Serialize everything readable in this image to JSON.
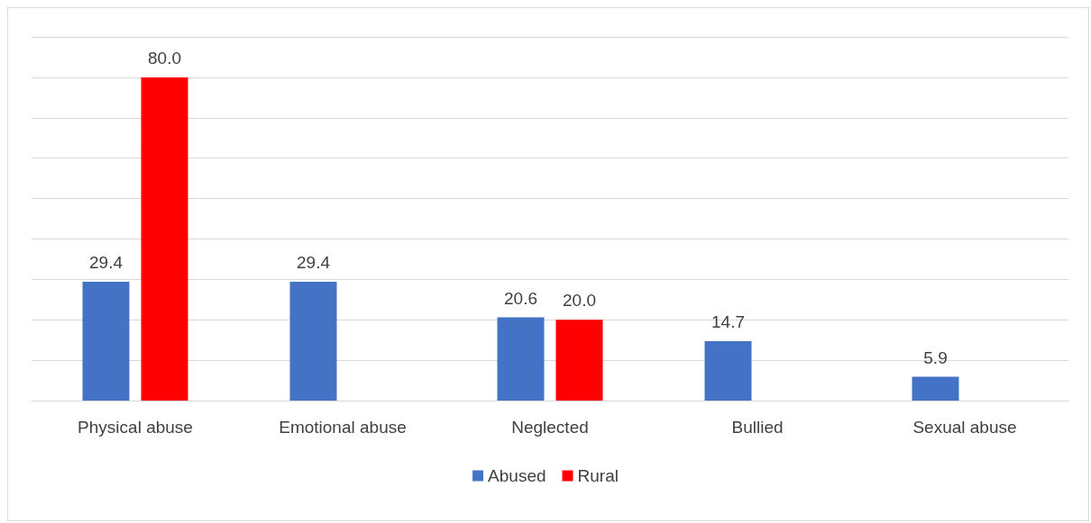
{
  "chart_data": {
    "type": "bar",
    "categories": [
      "Physical abuse",
      "Emotional abuse",
      "Neglected",
      "Bullied",
      "Sexual abuse"
    ],
    "series": [
      {
        "name": "Abused",
        "color": "#4472c4",
        "values": [
          29.4,
          29.4,
          20.6,
          14.7,
          5.9
        ],
        "value_labels": [
          "29.4",
          "29.4",
          "20.6",
          "14.7",
          "5.9"
        ]
      },
      {
        "name": "Rural",
        "color": "#ff0000",
        "values": [
          80,
          null,
          20,
          null,
          null
        ],
        "value_labels": [
          "80.0",
          null,
          "20.0",
          null,
          null
        ]
      }
    ],
    "ylim": [
      0,
      90
    ],
    "yticks": [
      {
        "value": 0,
        "label": null
      },
      {
        "value": 10,
        "label": null
      },
      {
        "value": 20,
        "label": null
      },
      {
        "value": 30,
        "label": null
      },
      {
        "value": 40,
        "label": null
      },
      {
        "value": 50,
        "label": null
      },
      {
        "value": 60,
        "label": null
      },
      {
        "value": 70,
        "label": null
      },
      {
        "value": 80,
        "label": null
      },
      {
        "value": 90,
        "label": null
      }
    ],
    "tick_labels": "x",
    "grid": "y",
    "legend": "bottom"
  }
}
